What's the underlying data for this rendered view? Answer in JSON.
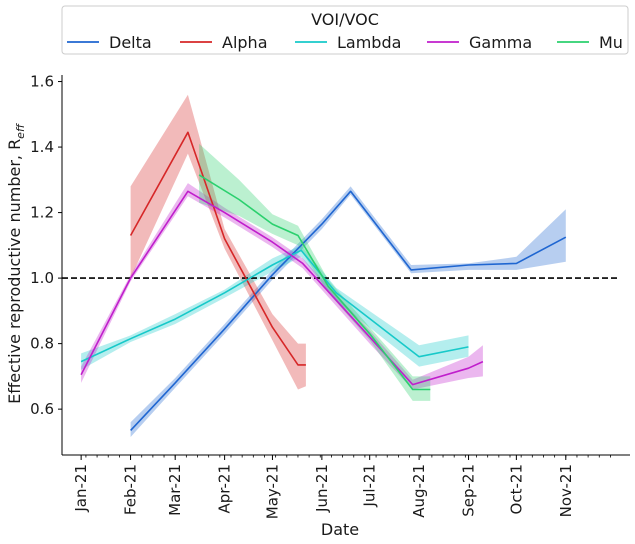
{
  "chart_data": {
    "type": "line",
    "xlabel": "Date",
    "ylabel": "Effective reproductive number, R",
    "ylabel_subscript": "eff",
    "x_range": [
      "2020-12-20",
      "2021-12-05"
    ],
    "ylim": [
      0.46,
      1.62
    ],
    "x_ticks": [
      {
        "date": "2021-01-01",
        "label": "Jan-21"
      },
      {
        "date": "2021-02-01",
        "label": "Feb-21"
      },
      {
        "date": "2021-03-01",
        "label": "Mar-21"
      },
      {
        "date": "2021-04-01",
        "label": "Apr-21"
      },
      {
        "date": "2021-05-01",
        "label": "May-21"
      },
      {
        "date": "2021-06-01",
        "label": "Jun-21"
      },
      {
        "date": "2021-07-01",
        "label": "Jul-21"
      },
      {
        "date": "2021-08-01",
        "label": "Aug-21"
      },
      {
        "date": "2021-09-01",
        "label": "Sep-21"
      },
      {
        "date": "2021-10-01",
        "label": "Oct-21"
      },
      {
        "date": "2021-11-01",
        "label": "Nov-21"
      }
    ],
    "y_ticks": [
      "0.6",
      "0.8",
      "1.0",
      "1.2",
      "1.4",
      "1.6"
    ],
    "reference_line": {
      "y": 1.0,
      "style": "dashed",
      "color": "#000000"
    },
    "grid": false,
    "legend": {
      "title": "VOI/VOC",
      "placement": "top",
      "columns": 5
    },
    "series": [
      {
        "name": "Delta",
        "color": "#1f66d1",
        "points": [
          {
            "x": "2021-02-01",
            "y": 0.535,
            "lo": 0.515,
            "hi": 0.56
          },
          {
            "x": "2021-03-01",
            "y": 0.68,
            "lo": 0.665,
            "hi": 0.695
          },
          {
            "x": "2021-04-01",
            "y": 0.845,
            "lo": 0.83,
            "hi": 0.86
          },
          {
            "x": "2021-05-01",
            "y": 1.01,
            "lo": 0.995,
            "hi": 1.025
          },
          {
            "x": "2021-06-01",
            "y": 1.165,
            "lo": 1.15,
            "hi": 1.18
          },
          {
            "x": "2021-06-19",
            "y": 1.265,
            "lo": 1.255,
            "hi": 1.28
          },
          {
            "x": "2021-07-27",
            "y": 1.025,
            "lo": 1.015,
            "hi": 1.04
          },
          {
            "x": "2021-09-01",
            "y": 1.04,
            "lo": 1.025,
            "hi": 1.045
          },
          {
            "x": "2021-10-01",
            "y": 1.045,
            "lo": 1.025,
            "hi": 1.065
          },
          {
            "x": "2021-11-01",
            "y": 1.125,
            "lo": 1.05,
            "hi": 1.21
          }
        ]
      },
      {
        "name": "Alpha",
        "color": "#d62728",
        "points": [
          {
            "x": "2021-02-01",
            "y": 1.13,
            "lo": 1.0,
            "hi": 1.28
          },
          {
            "x": "2021-03-09",
            "y": 1.445,
            "lo": 1.38,
            "hi": 1.56
          },
          {
            "x": "2021-04-01",
            "y": 1.12,
            "lo": 1.09,
            "hi": 1.15
          },
          {
            "x": "2021-05-01",
            "y": 0.85,
            "lo": 0.81,
            "hi": 0.89
          },
          {
            "x": "2021-05-17",
            "y": 0.735,
            "lo": 0.66,
            "hi": 0.8
          },
          {
            "x": "2021-05-22",
            "y": 0.735,
            "lo": 0.67,
            "hi": 0.8
          }
        ]
      },
      {
        "name": "Lambda",
        "color": "#17c9c9",
        "points": [
          {
            "x": "2021-01-01",
            "y": 0.745,
            "lo": 0.72,
            "hi": 0.77
          },
          {
            "x": "2021-02-01",
            "y": 0.815,
            "lo": 0.805,
            "hi": 0.825
          },
          {
            "x": "2021-03-01",
            "y": 0.875,
            "lo": 0.86,
            "hi": 0.89
          },
          {
            "x": "2021-04-01",
            "y": 0.955,
            "lo": 0.94,
            "hi": 0.965
          },
          {
            "x": "2021-05-01",
            "y": 1.04,
            "lo": 1.02,
            "hi": 1.06
          },
          {
            "x": "2021-05-19",
            "y": 1.085,
            "lo": 1.065,
            "hi": 1.1
          },
          {
            "x": "2021-06-10",
            "y": 0.955,
            "lo": 0.93,
            "hi": 0.97
          },
          {
            "x": "2021-08-01",
            "y": 0.76,
            "lo": 0.73,
            "hi": 0.795
          },
          {
            "x": "2021-09-01",
            "y": 0.79,
            "lo": 0.76,
            "hi": 0.825
          }
        ]
      },
      {
        "name": "Gamma",
        "color": "#c01ecc",
        "points": [
          {
            "x": "2021-01-01",
            "y": 0.705,
            "lo": 0.68,
            "hi": 0.73
          },
          {
            "x": "2021-02-01",
            "y": 1.0,
            "lo": 0.99,
            "hi": 1.01
          },
          {
            "x": "2021-03-09",
            "y": 1.265,
            "lo": 1.25,
            "hi": 1.29
          },
          {
            "x": "2021-04-01",
            "y": 1.2,
            "lo": 1.185,
            "hi": 1.215
          },
          {
            "x": "2021-05-01",
            "y": 1.11,
            "lo": 1.095,
            "hi": 1.125
          },
          {
            "x": "2021-05-20",
            "y": 1.045,
            "lo": 1.03,
            "hi": 1.06
          },
          {
            "x": "2021-07-01",
            "y": 0.82,
            "lo": 0.8,
            "hi": 0.84
          },
          {
            "x": "2021-07-28",
            "y": 0.675,
            "lo": 0.66,
            "hi": 0.69
          },
          {
            "x": "2021-09-01",
            "y": 0.725,
            "lo": 0.695,
            "hi": 0.76
          },
          {
            "x": "2021-09-10",
            "y": 0.745,
            "lo": 0.7,
            "hi": 0.795
          }
        ]
      },
      {
        "name": "Mu",
        "color": "#2bd06e",
        "points": [
          {
            "x": "2021-03-16",
            "y": 1.315,
            "lo": 1.23,
            "hi": 1.41
          },
          {
            "x": "2021-04-10",
            "y": 1.24,
            "lo": 1.19,
            "hi": 1.3
          },
          {
            "x": "2021-05-01",
            "y": 1.165,
            "lo": 1.135,
            "hi": 1.195
          },
          {
            "x": "2021-05-17",
            "y": 1.13,
            "lo": 1.1,
            "hi": 1.16
          },
          {
            "x": "2021-06-05",
            "y": 0.975,
            "lo": 0.955,
            "hi": 0.995
          },
          {
            "x": "2021-07-01",
            "y": 0.83,
            "lo": 0.81,
            "hi": 0.85
          },
          {
            "x": "2021-07-28",
            "y": 0.66,
            "lo": 0.625,
            "hi": 0.7
          },
          {
            "x": "2021-08-08",
            "y": 0.66,
            "lo": 0.625,
            "hi": 0.7
          }
        ]
      }
    ]
  }
}
